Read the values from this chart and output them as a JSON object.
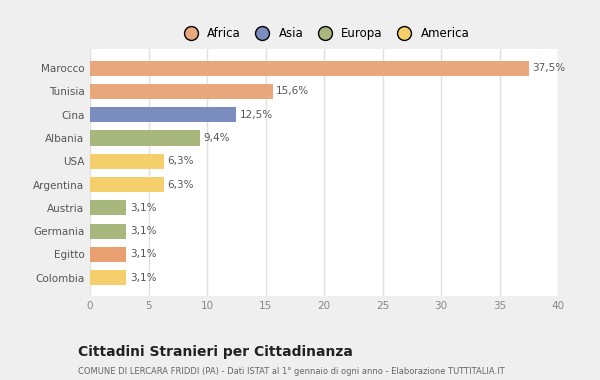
{
  "categories": [
    "Colombia",
    "Egitto",
    "Germania",
    "Austria",
    "Argentina",
    "USA",
    "Albania",
    "Cina",
    "Tunisia",
    "Marocco"
  ],
  "values": [
    3.1,
    3.1,
    3.1,
    3.1,
    6.3,
    6.3,
    9.4,
    12.5,
    15.6,
    37.5
  ],
  "labels": [
    "3,1%",
    "3,1%",
    "3,1%",
    "3,1%",
    "6,3%",
    "6,3%",
    "9,4%",
    "12,5%",
    "15,6%",
    "37,5%"
  ],
  "colors": [
    "#F5CF6B",
    "#E8A070",
    "#A8B87C",
    "#A8B87C",
    "#F5CF6B",
    "#F5CF6B",
    "#A8B87C",
    "#7B8DBF",
    "#E8A87C",
    "#E8A87C"
  ],
  "legend_labels": [
    "Africa",
    "Asia",
    "Europa",
    "America"
  ],
  "legend_colors": [
    "#E8A87C",
    "#7B8DBF",
    "#A8B87C",
    "#F5CF6B"
  ],
  "title": "Cittadini Stranieri per Cittadinanza",
  "subtitle": "COMUNE DI LERCARA FRIDDI (PA) - Dati ISTAT al 1° gennaio di ogni anno - Elaborazione TUTTITALIA.IT",
  "xlim": [
    0,
    40
  ],
  "xticks": [
    0,
    5,
    10,
    15,
    20,
    25,
    30,
    35,
    40
  ],
  "fig_bg_color": "#EFEFEF",
  "plot_bg_color": "#FFFFFF",
  "grid_color": "#E0E0E0"
}
